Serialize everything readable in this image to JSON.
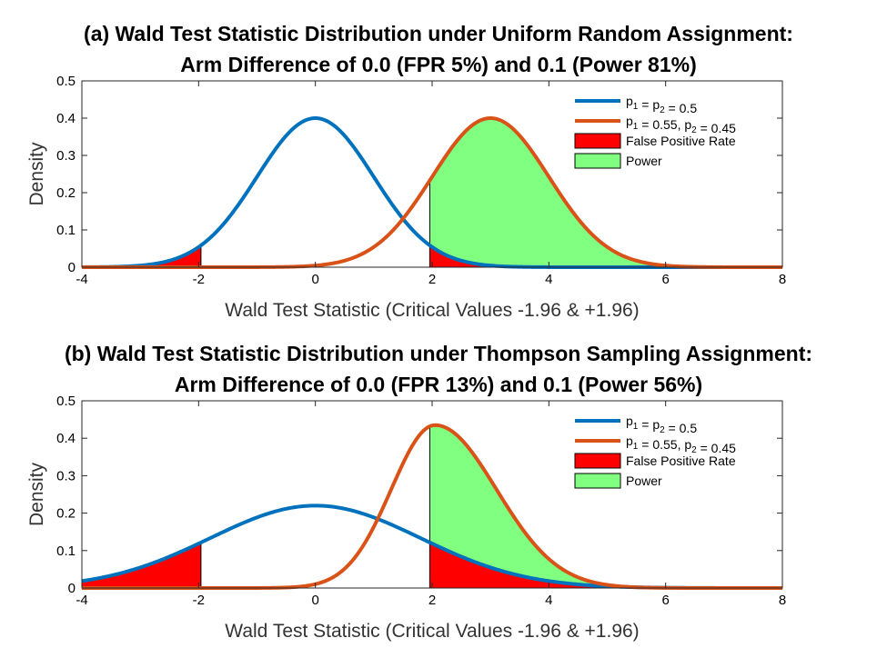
{
  "chart_data": [
    {
      "type": "line",
      "title_lines": [
        "(a) Wald Test Statistic Distribution under Uniform Random Assignment:",
        "Arm Difference of 0.0 (FPR 5%) and 0.1 (Power 81%)"
      ],
      "xlabel": "Wald Test Statistic (Critical Values -1.96 & +1.96)",
      "ylabel": "Density",
      "xlim": [
        -4,
        8
      ],
      "ylim": [
        0,
        0.5
      ],
      "xticks": [
        -4,
        -2,
        0,
        2,
        4,
        6,
        8
      ],
      "yticks": [
        0,
        0.1,
        0.2,
        0.3,
        0.4,
        0.5
      ],
      "critical_values": [
        -1.96,
        1.96
      ],
      "series": [
        {
          "name": "p1 = p2 = 0.5",
          "legend_parts": [
            [
              "p",
              "1"
            ],
            [
              " = ",
              ""
            ],
            [
              "p",
              "2"
            ],
            [
              " = 0.5",
              ""
            ]
          ],
          "color": "#0072BD",
          "peak": 0.4,
          "center": 0.0,
          "sd": 1.0
        },
        {
          "name": "p1 = 0.55, p2 = 0.45",
          "legend_parts": [
            [
              "p",
              "1"
            ],
            [
              " = 0.55, ",
              ""
            ],
            [
              "p",
              "2"
            ],
            [
              " = 0.45",
              ""
            ]
          ],
          "color": "#D95319",
          "peak": 0.4,
          "center": 3.0,
          "sd": 1.0
        }
      ],
      "fills": [
        {
          "name": "False Positive Rate",
          "color": "#FF0000"
        },
        {
          "name": "Power",
          "color": "#80FF80"
        }
      ]
    },
    {
      "type": "line",
      "title_lines": [
        "(b) Wald Test Statistic Distribution under Thompson Sampling Assignment:",
        "Arm Difference of 0.0 (FPR 13%) and 0.1 (Power 56%)"
      ],
      "xlabel": "Wald Test Statistic (Critical Values -1.96 & +1.96)",
      "ylabel": "Density",
      "xlim": [
        -4,
        8
      ],
      "ylim": [
        0,
        0.5
      ],
      "xticks": [
        -4,
        -2,
        0,
        2,
        4,
        6,
        8
      ],
      "yticks": [
        0,
        0.1,
        0.2,
        0.3,
        0.4,
        0.5
      ],
      "critical_values": [
        -1.96,
        1.96
      ],
      "series": [
        {
          "name": "p1 = p2 = 0.5",
          "legend_parts": [
            [
              "p",
              "1"
            ],
            [
              " = ",
              ""
            ],
            [
              "p",
              "2"
            ],
            [
              " = 0.5",
              ""
            ]
          ],
          "color": "#0072BD",
          "peak": 0.22,
          "center": 0.0,
          "sd": 1.8
        },
        {
          "name": "p1 = 0.55, p2 = 0.45",
          "legend_parts": [
            [
              "p",
              "1"
            ],
            [
              " = 0.55, ",
              ""
            ],
            [
              "p",
              "2"
            ],
            [
              " = 0.45",
              ""
            ]
          ],
          "color": "#D95319",
          "peak": 0.435,
          "center": 2.05,
          "sd_left": 0.75,
          "sd_right": 1.05
        }
      ],
      "fills": [
        {
          "name": "False Positive Rate",
          "color": "#FF0000"
        },
        {
          "name": "Power",
          "color": "#80FF80"
        }
      ]
    }
  ]
}
